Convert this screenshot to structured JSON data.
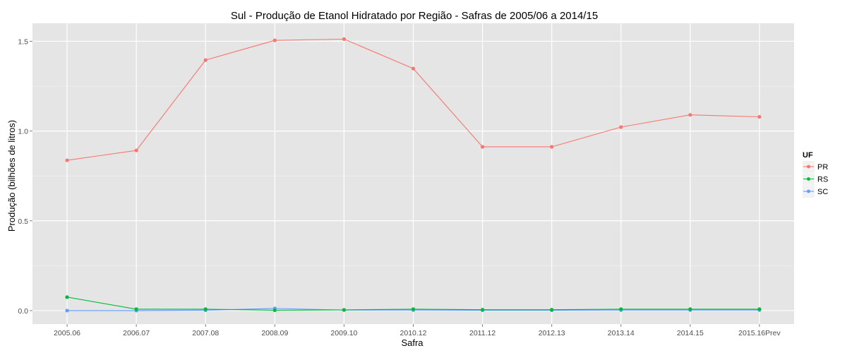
{
  "chart_data": {
    "type": "line",
    "title": "Sul  - Produção de Etanol Hidratado por Região - Safras de 2005/06 a 2014/15",
    "xlabel": "Safra",
    "ylabel": "Produção (bilhões de litros)",
    "categories": [
      "2005.06",
      "2006.07",
      "2007.08",
      "2008.09",
      "2009.10",
      "2010.12",
      "2011.12",
      "2012.13",
      "2013.14",
      "2014.15",
      "2015.16Prev"
    ],
    "ylim": [
      -0.075,
      1.6
    ],
    "yticks": [
      0.0,
      0.5,
      1.0,
      1.5
    ],
    "ytick_labels": [
      "0.0",
      "0.5",
      "1.0",
      "1.5"
    ],
    "grid": true,
    "legend": {
      "title": "UF",
      "position": "right"
    },
    "series": [
      {
        "name": "PR",
        "color": "#F8766D",
        "values": [
          0.837,
          0.892,
          1.395,
          1.505,
          1.512,
          1.348,
          0.912,
          0.912,
          1.022,
          1.09,
          1.079
        ]
      },
      {
        "name": "RS",
        "color": "#00BA38",
        "values": [
          0.075,
          0.008,
          0.008,
          0.002,
          0.004,
          0.008,
          0.005,
          0.005,
          0.008,
          0.008,
          0.008
        ]
      },
      {
        "name": "SC",
        "color": "#619CFF",
        "values": [
          0.0,
          0.0,
          0.002,
          0.012,
          0.003,
          0.003,
          0.002,
          0.002,
          0.003,
          0.003,
          0.003
        ]
      }
    ]
  }
}
